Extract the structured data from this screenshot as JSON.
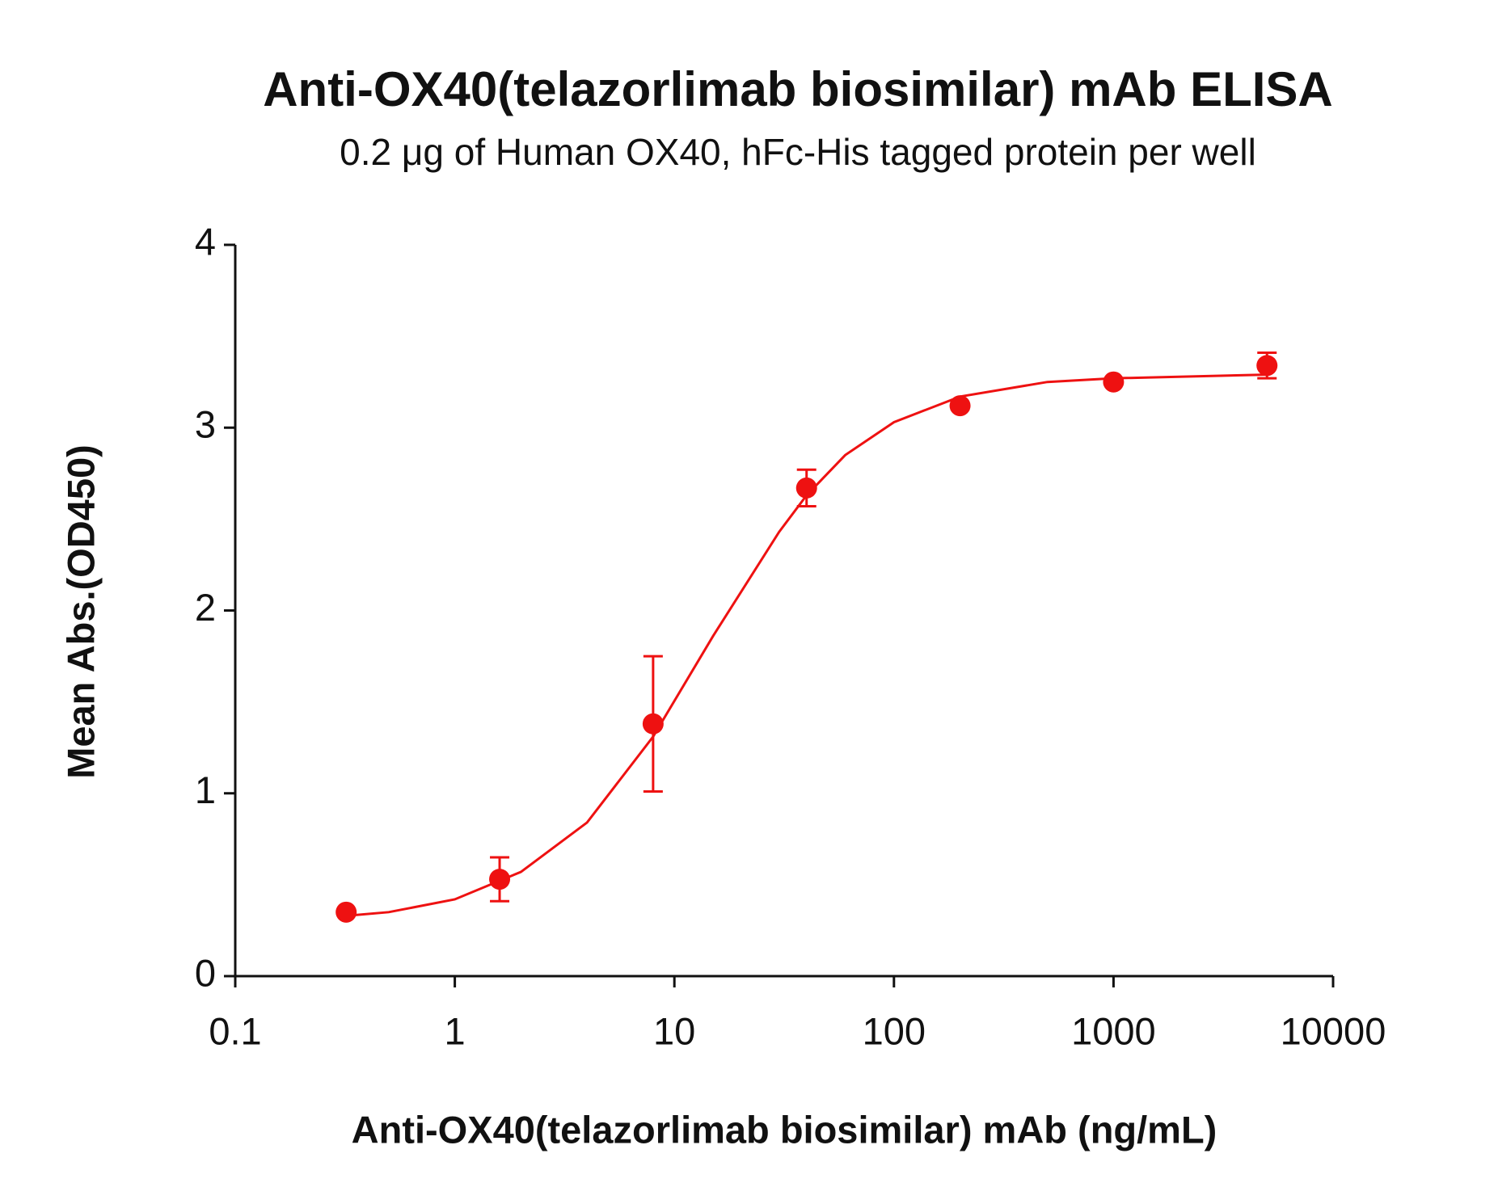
{
  "chart_data": {
    "type": "scatter",
    "title": "Anti-OX40(telazorlimab biosimilar) mAb ELISA",
    "subtitle": "0.2 μg of Human OX40, hFc-His tagged protein per well",
    "x_label": "Anti-OX40(telazorlimab biosimilar) mAb (ng/mL)",
    "y_label": "Mean Abs.(OD450)",
    "x_scale": "log",
    "xlim": [
      0.1,
      10000
    ],
    "xticks": [
      0.1,
      1,
      10,
      100,
      1000,
      10000
    ],
    "ylim": [
      0,
      4
    ],
    "yticks": [
      0,
      1,
      2,
      3,
      4
    ],
    "color": "#ee1111",
    "x": [
      0.32,
      1.6,
      8,
      40,
      200,
      1000,
      5000
    ],
    "values": [
      0.35,
      0.53,
      1.38,
      2.67,
      3.12,
      3.25,
      3.34
    ],
    "errors": [
      null,
      0.12,
      0.37,
      0.1,
      null,
      null,
      0.07
    ],
    "curve": {
      "x": [
        0.32,
        0.5,
        1,
        2,
        4,
        8,
        15,
        30,
        40,
        60,
        100,
        200,
        500,
        1000,
        5000
      ],
      "values": [
        0.33,
        0.35,
        0.42,
        0.57,
        0.84,
        1.31,
        1.86,
        2.43,
        2.63,
        2.85,
        3.03,
        3.17,
        3.25,
        3.27,
        3.29
      ]
    }
  }
}
